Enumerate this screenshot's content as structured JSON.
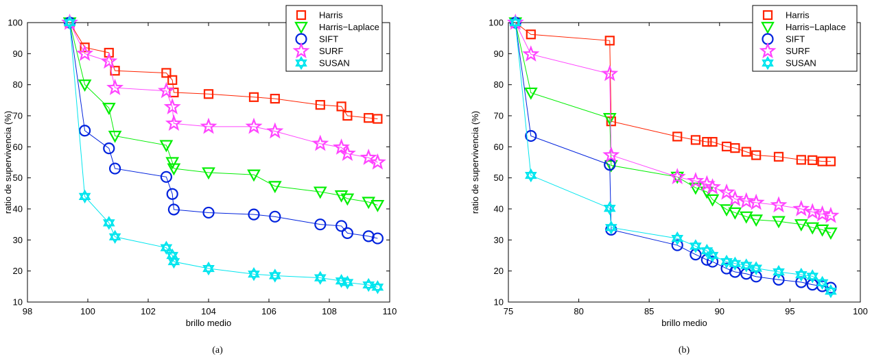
{
  "chart_data": [
    {
      "type": "line",
      "caption": "(a)",
      "xlabel": "brillo medio",
      "ylabel": "ratio de supervivencia (%)",
      "xlim": [
        98,
        110
      ],
      "ylim": [
        10,
        100
      ],
      "xticks": [
        "98",
        "100",
        "102",
        "104",
        "106",
        "108",
        "110"
      ],
      "yticks": [
        "10",
        "20",
        "30",
        "40",
        "50",
        "60",
        "70",
        "80",
        "90",
        "100"
      ],
      "legend_position": "top-right",
      "series": [
        {
          "name": "Harris",
          "color": "#ff2200",
          "marker": "square",
          "x": [
            99.4,
            99.9,
            100.7,
            100.9,
            102.6,
            102.8,
            102.85,
            104.0,
            105.5,
            106.2,
            107.7,
            108.4,
            108.6,
            109.3,
            109.6
          ],
          "y": [
            100,
            92,
            90.3,
            84.5,
            83.8,
            81.5,
            77.5,
            77,
            76,
            75.5,
            73.5,
            73,
            70,
            69.3,
            69
          ]
        },
        {
          "name": "Harris−Laplace",
          "color": "#00ee00",
          "marker": "triangle-down",
          "x": [
            99.4,
            99.9,
            100.7,
            100.9,
            102.6,
            102.8,
            102.85,
            104.0,
            105.5,
            106.2,
            107.7,
            108.4,
            108.6,
            109.3,
            109.6
          ],
          "y": [
            100,
            80,
            72.5,
            63.5,
            60.5,
            55,
            53,
            51.7,
            51,
            47.3,
            45.5,
            44.3,
            43.3,
            42.2,
            41.2
          ]
        },
        {
          "name": "SIFT",
          "color": "#0022dd",
          "marker": "circle",
          "x": [
            99.4,
            99.9,
            100.7,
            100.9,
            102.6,
            102.8,
            102.85,
            104.0,
            105.5,
            106.2,
            107.7,
            108.4,
            108.6,
            109.3,
            109.6
          ],
          "y": [
            100,
            65.2,
            59.5,
            53,
            50.3,
            44.8,
            39.8,
            38.8,
            38.2,
            37.5,
            35,
            34.5,
            32.2,
            31.2,
            30.5
          ]
        },
        {
          "name": "SURF",
          "color": "#ff44ff",
          "marker": "star",
          "x": [
            99.4,
            99.9,
            100.7,
            100.9,
            102.6,
            102.8,
            102.85,
            104.0,
            105.5,
            106.2,
            107.7,
            108.4,
            108.6,
            109.3,
            109.6
          ],
          "y": [
            100,
            90,
            87.5,
            79,
            78,
            72.8,
            67.5,
            66.5,
            66.5,
            65,
            61,
            59.8,
            57.8,
            56.5,
            55
          ]
        },
        {
          "name": "SUSAN",
          "color": "#00e5ee",
          "marker": "hexagram",
          "x": [
            99.4,
            99.9,
            100.7,
            100.9,
            102.6,
            102.8,
            102.85,
            104.0,
            105.5,
            106.2,
            107.7,
            108.4,
            108.6,
            109.3,
            109.6
          ],
          "y": [
            100,
            44,
            35.5,
            31,
            27.5,
            25,
            23,
            20.8,
            19,
            18.5,
            17.8,
            16.8,
            16.3,
            15.5,
            14.8
          ]
        }
      ]
    },
    {
      "type": "line",
      "caption": "(b)",
      "xlabel": "brillo medio",
      "ylabel": "ratio de supervivencia (%)",
      "xlim": [
        75,
        100
      ],
      "ylim": [
        10,
        100
      ],
      "xticks": [
        "75",
        "80",
        "85",
        "90",
        "95",
        "100"
      ],
      "yticks": [
        "10",
        "20",
        "30",
        "40",
        "50",
        "60",
        "70",
        "80",
        "90",
        "100"
      ],
      "legend_position": "top-right",
      "series": [
        {
          "name": "Harris",
          "color": "#ff2200",
          "marker": "square",
          "x": [
            75.5,
            76.6,
            82.2,
            82.3,
            87.0,
            88.3,
            89.1,
            89.5,
            90.5,
            91.1,
            91.9,
            92.6,
            94.2,
            95.8,
            96.6,
            97.3,
            97.9
          ],
          "y": [
            100,
            96.2,
            94.2,
            68.2,
            63.3,
            62.2,
            61.6,
            61.6,
            60.1,
            59.6,
            58.4,
            57.3,
            56.8,
            55.8,
            55.7,
            55.3,
            55.3
          ]
        },
        {
          "name": "Harris−Laplace",
          "color": "#00ee00",
          "marker": "triangle-down",
          "x": [
            75.5,
            76.6,
            82.2,
            82.3,
            87.0,
            88.3,
            89.1,
            89.5,
            90.5,
            91.1,
            91.9,
            92.6,
            94.2,
            95.8,
            96.6,
            97.3,
            97.9
          ],
          "y": [
            100,
            77.4,
            69.2,
            54,
            50.3,
            46.8,
            45.5,
            43,
            39.8,
            38.8,
            37.5,
            36.5,
            36,
            35,
            34,
            33.3,
            32.3
          ]
        },
        {
          "name": "SIFT",
          "color": "#0022dd",
          "marker": "circle",
          "x": [
            75.5,
            76.6,
            82.2,
            82.3,
            87.0,
            88.3,
            89.1,
            89.5,
            90.5,
            91.1,
            91.9,
            92.6,
            94.2,
            95.8,
            96.6,
            97.3,
            97.9
          ],
          "y": [
            100,
            63.5,
            54.2,
            33.3,
            28.3,
            25.3,
            23.6,
            23,
            20.8,
            19.7,
            19.1,
            18.2,
            17.2,
            16.4,
            15.6,
            15.1,
            14.6
          ]
        },
        {
          "name": "SURF",
          "color": "#ff44ff",
          "marker": "star",
          "x": [
            75.5,
            76.6,
            82.2,
            82.3,
            87.0,
            88.3,
            89.1,
            89.5,
            90.5,
            91.1,
            91.9,
            92.6,
            94.2,
            95.8,
            96.6,
            97.3,
            97.9
          ],
          "y": [
            100,
            89.8,
            83.5,
            57.3,
            50.3,
            49,
            48,
            47,
            45.3,
            43.2,
            42.5,
            42,
            41.2,
            40,
            39,
            38.3,
            37.8
          ]
        },
        {
          "name": "SUSAN",
          "color": "#00e5ee",
          "marker": "hexagram",
          "x": [
            75.5,
            76.6,
            82.2,
            82.3,
            87.0,
            88.3,
            89.1,
            89.5,
            90.5,
            91.1,
            91.9,
            92.6,
            94.2,
            95.8,
            96.6,
            97.3,
            97.9
          ],
          "y": [
            100,
            50.8,
            40.2,
            34,
            30.5,
            28,
            26.5,
            25,
            23,
            22.4,
            21.8,
            20.9,
            19.7,
            18.8,
            18.3,
            16.2,
            13.5
          ]
        }
      ]
    }
  ]
}
